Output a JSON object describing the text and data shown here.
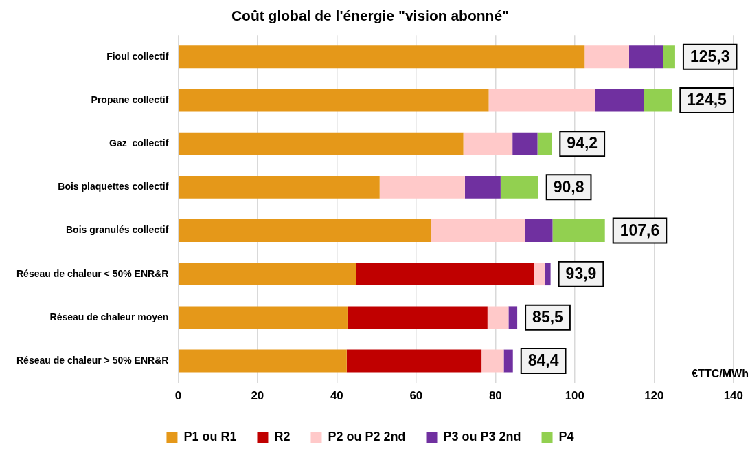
{
  "chart_data": {
    "type": "bar",
    "orientation": "horizontal",
    "stacked": true,
    "title": "Coût global de l'énergie \"vision abonné\"",
    "xlabel": "€TTC/MWh",
    "categories": [
      "Fioul collectif",
      "Propane collectif",
      "Gaz  collectif",
      "Bois plaquettes collectif",
      "Bois granulés collectif",
      "Réseau de chaleur < 50% ENR&R",
      "Réseau de chaleur moyen",
      "Réseau de chaleur > 50% ENR&R"
    ],
    "series": [
      {
        "name": "P1 ou R1",
        "color": "#e59819",
        "values": [
          102.5,
          78.3,
          71.9,
          50.8,
          63.8,
          44.9,
          42.7,
          42.5
        ]
      },
      {
        "name": "R2",
        "color": "#c00000",
        "values": [
          null,
          null,
          null,
          null,
          null,
          44.9,
          35.3,
          34.0
        ]
      },
      {
        "name": "P2 ou P2 2nd",
        "color": "#ffc9c9",
        "values": [
          11.2,
          26.8,
          12.4,
          21.5,
          23.6,
          2.7,
          5.3,
          5.6
        ]
      },
      {
        "name": "P3 ou P3 2nd",
        "color": "#7030a0",
        "values": [
          8.5,
          12.3,
          6.3,
          9.0,
          7.0,
          1.4,
          2.2,
          2.3
        ]
      },
      {
        "name": "P4",
        "color": "#92d050",
        "values": [
          3.1,
          7.1,
          3.6,
          9.5,
          13.2,
          null,
          null,
          null
        ]
      }
    ],
    "totals": [
      "125,3",
      "124,5",
      "94,2",
      "90,8",
      "107,6",
      "93,9",
      "85,5",
      "84,4"
    ],
    "xlim": [
      0,
      140
    ],
    "xticks": [
      0,
      20,
      40,
      60,
      80,
      100,
      120,
      140
    ],
    "grid": "x",
    "legend": "bottom"
  }
}
